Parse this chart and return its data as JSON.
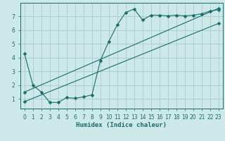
{
  "xlabel": "Humidex (Indice chaleur)",
  "bg_color": "#cce8e8",
  "line_color": "#1a6b6b",
  "grid_color": "#aacccc",
  "axis_color": "#1a6b6b",
  "tick_color": "#1a6b6b",
  "xlim": [
    -0.5,
    23.5
  ],
  "ylim": [
    0.3,
    8.0
  ],
  "xtick_labels": [
    "0",
    "1",
    "2",
    "3",
    "4",
    "5",
    "6",
    "7",
    "8",
    "9",
    "10",
    "11",
    "12",
    "13",
    "14",
    "15",
    "16",
    "17",
    "18",
    "19",
    "20",
    "21",
    "22",
    "23"
  ],
  "xtick_pos": [
    0,
    1,
    2,
    3,
    4,
    5,
    6,
    7,
    8,
    9,
    10,
    11,
    12,
    13,
    14,
    15,
    16,
    17,
    18,
    19,
    20,
    21,
    22,
    23
  ],
  "yticks": [
    1,
    2,
    3,
    4,
    5,
    6,
    7
  ],
  "series1_x": [
    0,
    1,
    2,
    3,
    4,
    5,
    6,
    7,
    8,
    9,
    10,
    11,
    12,
    13,
    14,
    15,
    16,
    17,
    18,
    19,
    20,
    21,
    22,
    23
  ],
  "series1_y": [
    4.3,
    2.0,
    1.5,
    0.75,
    0.75,
    1.1,
    1.05,
    1.15,
    1.3,
    3.8,
    5.2,
    6.4,
    7.3,
    7.55,
    6.75,
    7.1,
    7.1,
    7.05,
    7.1,
    7.05,
    7.1,
    7.2,
    7.4,
    7.5
  ],
  "series2_x": [
    0,
    23
  ],
  "series2_y": [
    1.5,
    7.6
  ],
  "series3_x": [
    0,
    23
  ],
  "series3_y": [
    0.8,
    6.5
  ],
  "markersize": 2.5
}
